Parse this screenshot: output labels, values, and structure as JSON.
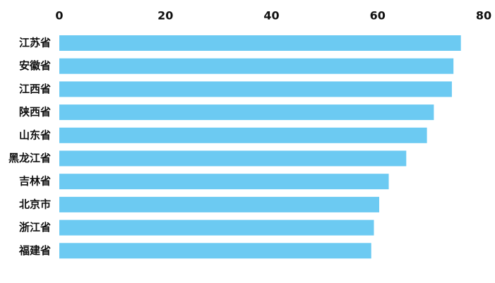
{
  "chart_data": {
    "type": "bar",
    "orientation": "horizontal",
    "title": "",
    "xlabel": "",
    "ylabel": "",
    "xlim": [
      0,
      80
    ],
    "x_ticks": [
      "0",
      "20",
      "40",
      "60",
      "80"
    ],
    "x_axis_position": "top",
    "grid": false,
    "legend": "none",
    "categories": [
      "江苏省",
      "安徽省",
      "江西省",
      "陕西省",
      "山东省",
      "黑龙江省",
      "吉林省",
      "北京市",
      "浙江省",
      "福建省"
    ],
    "values": [
      75.7,
      74.3,
      74.0,
      70.6,
      69.3,
      65.4,
      62.1,
      60.3,
      59.3,
      58.8
    ],
    "bar_color": "#6ccaf2"
  }
}
